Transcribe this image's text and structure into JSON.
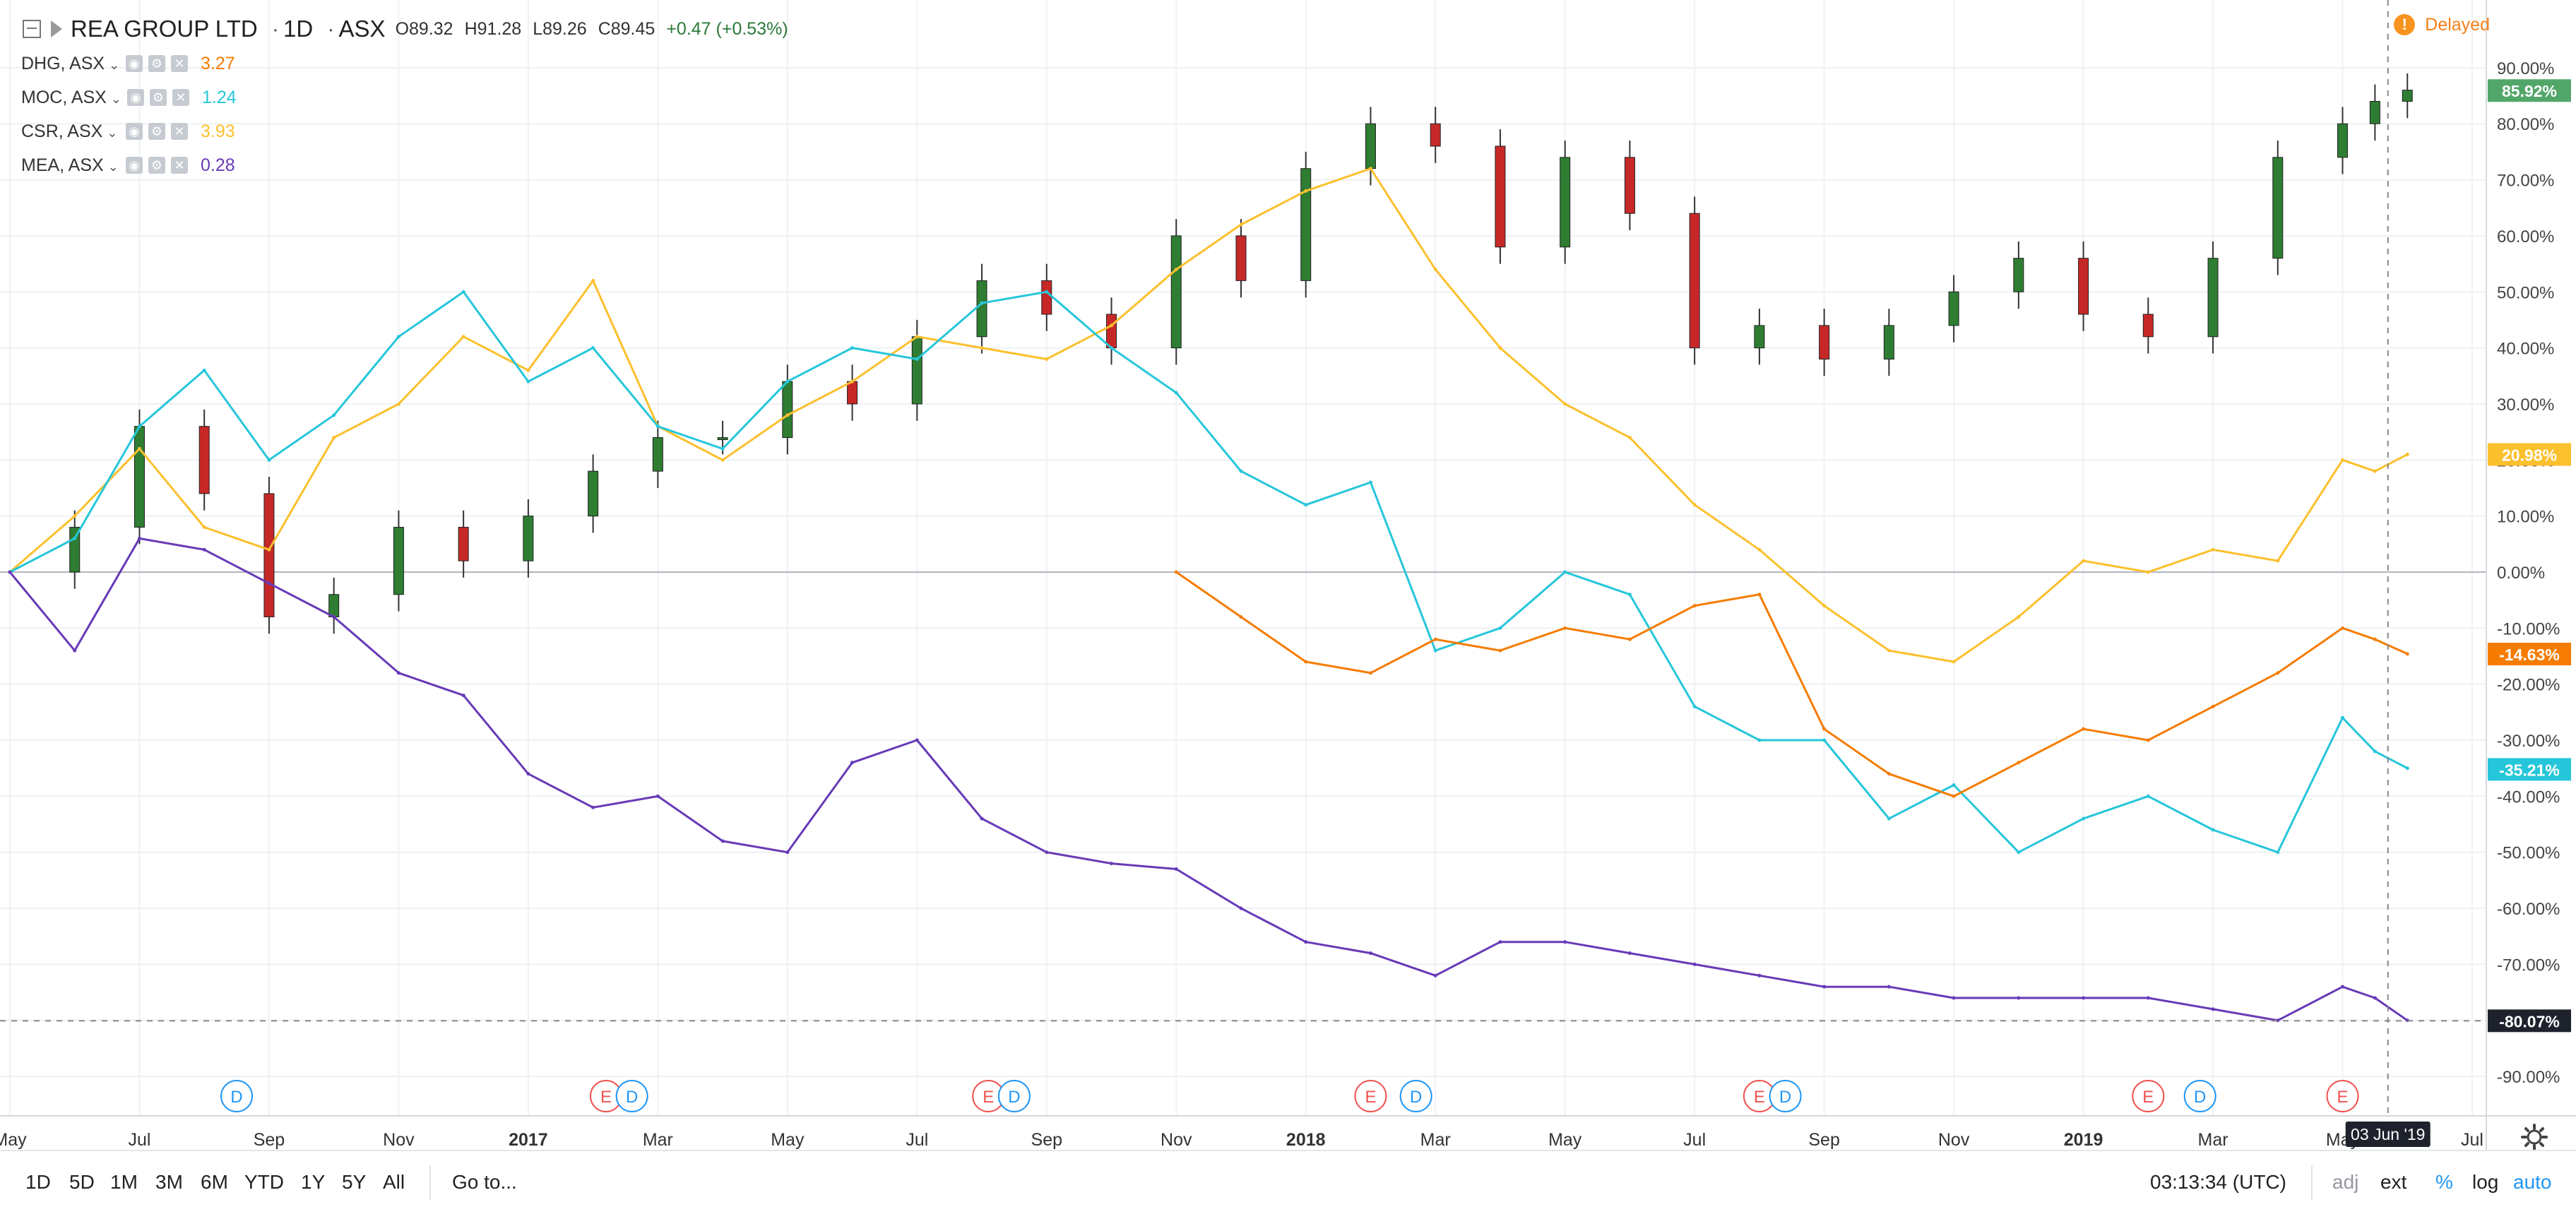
{
  "header": {
    "symbol": "REA GROUP LTD",
    "interval": "1D",
    "exchange": "ASX",
    "open": "O89.32",
    "high": "H91.28",
    "low": "L89.26",
    "close": "C89.45",
    "change": "+0.47 (+0.53%)",
    "delayed_label": "Delayed"
  },
  "legend": [
    {
      "label": "DHG, ASX",
      "value": "3.27",
      "color": "#f57c00"
    },
    {
      "label": "MOC, ASX",
      "value": "1.24",
      "color": "#26c6da"
    },
    {
      "label": "CSR, ASX",
      "value": "3.93",
      "color": "#fbc02d"
    },
    {
      "label": "MEA, ASX",
      "value": "0.28",
      "color": "#673ab7"
    }
  ],
  "bottom_bar": {
    "ranges": [
      "1D",
      "5D",
      "1M",
      "3M",
      "6M",
      "YTD",
      "1Y",
      "5Y",
      "All"
    ],
    "goto_label": "Go to...",
    "clock": "03:13:34 (UTC)",
    "options": [
      "adj",
      "ext",
      "%",
      "log",
      "auto"
    ]
  },
  "chart_data": {
    "type": "line",
    "scale": "percent",
    "ylim": [
      -92,
      92
    ],
    "y_ticks": [
      "90.00%",
      "80.00%",
      "70.00%",
      "60.00%",
      "50.00%",
      "40.00%",
      "30.00%",
      "20.00%",
      "10.00%",
      "0.00%",
      "-10.00%",
      "-20.00%",
      "-30.00%",
      "-40.00%",
      "-50.00%",
      "-60.00%",
      "-70.00%",
      "-80.00%",
      "-90.00%"
    ],
    "x_labels": [
      "May",
      "Jul",
      "Sep",
      "Nov",
      "2017",
      "Mar",
      "May",
      "Jul",
      "Sep",
      "Nov",
      "2018",
      "Mar",
      "May",
      "Jul",
      "Sep",
      "Nov",
      "2019",
      "Mar",
      "May",
      "Jul"
    ],
    "crosshair_date": "03 Jun '19",
    "crosshair_value": "-80.07%",
    "price_badges": [
      {
        "label": "85.92%",
        "color": "#53a66a",
        "value": 85.92
      },
      {
        "label": "20.98%",
        "color": "#fbc02d",
        "value": 20.98
      },
      {
        "label": "-14.63%",
        "color": "#f57c00",
        "value": -14.63
      },
      {
        "label": "-35.21%",
        "color": "#26c6da",
        "value": -35.21
      }
    ],
    "events": [
      {
        "type": "D",
        "x_month": 3.5
      },
      {
        "type": "E",
        "x_month": 9.2
      },
      {
        "type": "D",
        "x_month": 9.6
      },
      {
        "type": "E",
        "x_month": 15.1
      },
      {
        "type": "D",
        "x_month": 15.5
      },
      {
        "type": "E",
        "x_month": 21.0
      },
      {
        "type": "D",
        "x_month": 21.7
      },
      {
        "type": "E",
        "x_month": 27.0
      },
      {
        "type": "D",
        "x_month": 27.4
      },
      {
        "type": "E",
        "x_month": 33.0
      },
      {
        "type": "D",
        "x_month": 33.8
      },
      {
        "type": "E",
        "x_month": 36.0
      }
    ],
    "series": [
      {
        "name": "REA GROUP LTD",
        "style": "candles",
        "color_up": "#2e7d32",
        "color_down": "#c62828",
        "x_months": [
          0,
          1,
          2,
          3,
          4,
          5,
          6,
          7,
          8,
          9,
          10,
          11,
          12,
          13,
          14,
          15,
          16,
          17,
          18,
          19,
          20,
          21,
          22,
          23,
          24,
          25,
          26,
          27,
          28,
          29,
          30,
          31,
          32,
          33,
          34,
          35,
          36,
          36.5,
          37
        ],
        "y": [
          0,
          8,
          26,
          14,
          -8,
          -4,
          8,
          2,
          10,
          18,
          24,
          24,
          34,
          30,
          42,
          52,
          46,
          40,
          60,
          52,
          72,
          80,
          76,
          58,
          74,
          64,
          40,
          44,
          38,
          44,
          50,
          56,
          46,
          42,
          56,
          74,
          80,
          84,
          86
        ]
      },
      {
        "name": "CSR, ASX",
        "style": "line",
        "color": "#fbc02d",
        "x_months": [
          0,
          1,
          2,
          3,
          4,
          5,
          6,
          7,
          8,
          9,
          10,
          11,
          12,
          13,
          14,
          15,
          16,
          17,
          18,
          19,
          20,
          21,
          22,
          23,
          24,
          25,
          26,
          27,
          28,
          29,
          30,
          31,
          32,
          33,
          34,
          35,
          36,
          36.5,
          37
        ],
        "y": [
          0,
          10,
          22,
          8,
          4,
          24,
          30,
          42,
          36,
          52,
          26,
          20,
          28,
          34,
          42,
          40,
          38,
          44,
          54,
          62,
          68,
          72,
          54,
          40,
          30,
          24,
          12,
          4,
          -6,
          -14,
          -16,
          -8,
          2,
          0,
          4,
          2,
          20,
          18,
          21
        ]
      },
      {
        "name": "MOC, ASX",
        "style": "line",
        "color": "#26c6da",
        "x_months": [
          0,
          1,
          2,
          3,
          4,
          5,
          6,
          7,
          8,
          9,
          10,
          11,
          12,
          13,
          14,
          15,
          16,
          17,
          18,
          19,
          20,
          21,
          22,
          23,
          24,
          25,
          26,
          27,
          28,
          29,
          30,
          31,
          32,
          33,
          34,
          35,
          36,
          36.5,
          37
        ],
        "y": [
          0,
          6,
          26,
          36,
          20,
          28,
          42,
          50,
          34,
          40,
          26,
          22,
          34,
          40,
          38,
          48,
          50,
          40,
          32,
          18,
          12,
          16,
          -14,
          -10,
          0,
          -4,
          -24,
          -30,
          -30,
          -44,
          -38,
          -50,
          -44,
          -40,
          -46,
          -50,
          -26,
          -32,
          -35
        ]
      },
      {
        "name": "DHG, ASX",
        "style": "line",
        "color": "#f57c00",
        "x_months": [
          18,
          19,
          20,
          21,
          22,
          23,
          24,
          25,
          26,
          27,
          28,
          29,
          30,
          31,
          32,
          33,
          34,
          35,
          36,
          36.5,
          37
        ],
        "y": [
          0,
          -8,
          -16,
          -18,
          -12,
          -14,
          -10,
          -12,
          -6,
          -4,
          -28,
          -36,
          -40,
          -34,
          -28,
          -30,
          -24,
          -18,
          -10,
          -12,
          -14.6
        ]
      },
      {
        "name": "MEA, ASX",
        "style": "line",
        "color": "#673ab7",
        "x_months": [
          0,
          1,
          2,
          3,
          4,
          5,
          6,
          7,
          8,
          9,
          10,
          11,
          12,
          13,
          14,
          15,
          16,
          17,
          18,
          19,
          20,
          21,
          22,
          23,
          24,
          25,
          26,
          27,
          28,
          29,
          30,
          31,
          32,
          33,
          34,
          35,
          36,
          36.5,
          37
        ],
        "y": [
          0,
          -14,
          6,
          4,
          -2,
          -8,
          -18,
          -22,
          -36,
          -42,
          -40,
          -48,
          -50,
          -34,
          -30,
          -44,
          -50,
          -52,
          -53,
          -60,
          -66,
          -68,
          -72,
          -66,
          -66,
          -68,
          -70,
          -72,
          -74,
          -74,
          -76,
          -76,
          -76,
          -76,
          -78,
          -80,
          -74,
          -76,
          -80
        ]
      }
    ]
  }
}
